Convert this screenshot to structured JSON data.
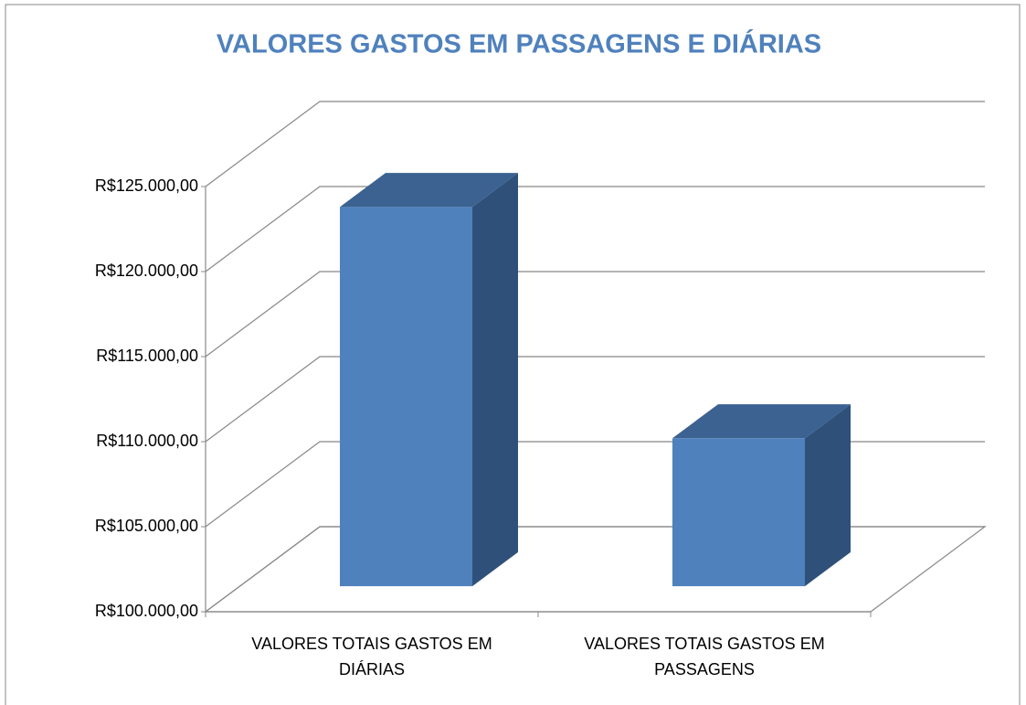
{
  "chart_data": {
    "type": "bar3d",
    "title": "VALORES GASTOS EM PASSAGENS E DIÁRIAS",
    "categories": [
      "VALORES TOTAIS GASTOS EM DIÁRIAS",
      "VALORES TOTAIS GASTOS EM PASSAGENS"
    ],
    "values": [
      122300,
      108700
    ],
    "color": "#4f81bd",
    "ylim": [
      100000,
      125000
    ],
    "yticks": [
      {
        "value": 100000,
        "label": "R$100.000,00"
      },
      {
        "value": 105000,
        "label": "R$105.000,00"
      },
      {
        "value": 110000,
        "label": "R$110.000,00"
      },
      {
        "value": 115000,
        "label": "R$115.000,00"
      },
      {
        "value": 120000,
        "label": "R$120.000,00"
      },
      {
        "value": 125000,
        "label": "R$125.000,00"
      }
    ],
    "grid": true
  }
}
